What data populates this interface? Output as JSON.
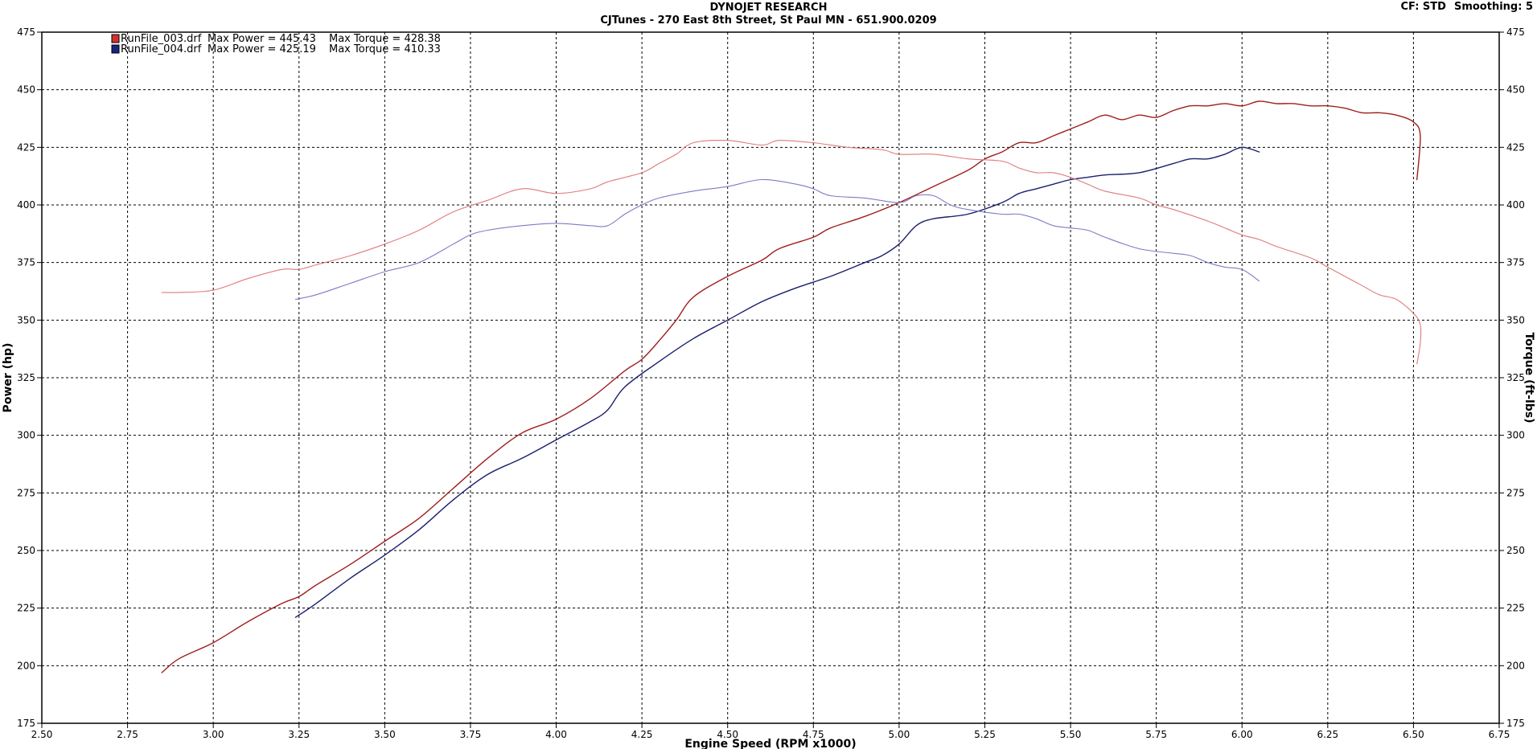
{
  "header": {
    "title": "DYNOJET RESEARCH",
    "subtitle": "CJTunes - 270 East 8th Street, St Paul MN - 651.900.0209",
    "cf_label": "CF: STD",
    "smoothing_label": "Smoothing: 5"
  },
  "chart_data": {
    "type": "line",
    "xlabel": "Engine Speed (RPM x1000)",
    "ylabel_left": "Power (hp)",
    "ylabel_right": "Torque (ft-lbs)",
    "xlim": [
      2.5,
      6.75
    ],
    "ylim": [
      175,
      475
    ],
    "x_ticks": [
      "2.50",
      "2.75",
      "3.00",
      "3.25",
      "3.50",
      "3.75",
      "4.00",
      "4.25",
      "4.50",
      "4.75",
      "5.00",
      "5.25",
      "5.50",
      "5.75",
      "6.00",
      "6.25",
      "6.50",
      "6.75"
    ],
    "y_ticks": [
      "475",
      "450",
      "425",
      "400",
      "375",
      "350",
      "325",
      "300",
      "275",
      "250",
      "225",
      "200",
      "175"
    ],
    "grid": true,
    "legend_position": "top-left",
    "legend": [
      {
        "swatch_color": "#d32f2f",
        "file": "RunFile_003.drf",
        "max_power_label": "Max Power = 445.43",
        "max_torque_label": "Max Torque = 428.38"
      },
      {
        "swatch_color": "#1a237e",
        "file": "RunFile_004.drf",
        "max_power_label": "Max Power = 425.19",
        "max_torque_label": "Max Torque = 410.33"
      }
    ],
    "series": [
      {
        "run": "RunFile_003.drf",
        "quantity": "power",
        "color": "#a01e1e",
        "width": 1.4,
        "points": [
          [
            2.85,
            197
          ],
          [
            2.9,
            203
          ],
          [
            3.0,
            210
          ],
          [
            3.1,
            219
          ],
          [
            3.2,
            227
          ],
          [
            3.25,
            230
          ],
          [
            3.3,
            235
          ],
          [
            3.4,
            244
          ],
          [
            3.5,
            254
          ],
          [
            3.6,
            264
          ],
          [
            3.7,
            277
          ],
          [
            3.8,
            290
          ],
          [
            3.9,
            301
          ],
          [
            4.0,
            307
          ],
          [
            4.1,
            316
          ],
          [
            4.2,
            328
          ],
          [
            4.25,
            333
          ],
          [
            4.3,
            341
          ],
          [
            4.35,
            350
          ],
          [
            4.4,
            360
          ],
          [
            4.5,
            369
          ],
          [
            4.6,
            376
          ],
          [
            4.65,
            381
          ],
          [
            4.75,
            386
          ],
          [
            4.8,
            390
          ],
          [
            4.9,
            395
          ],
          [
            5.0,
            401
          ],
          [
            5.1,
            408
          ],
          [
            5.2,
            415
          ],
          [
            5.25,
            420
          ],
          [
            5.3,
            423
          ],
          [
            5.35,
            427
          ],
          [
            5.4,
            427
          ],
          [
            5.45,
            430
          ],
          [
            5.5,
            433
          ],
          [
            5.55,
            436
          ],
          [
            5.6,
            439
          ],
          [
            5.65,
            437
          ],
          [
            5.7,
            439
          ],
          [
            5.75,
            438
          ],
          [
            5.8,
            441
          ],
          [
            5.85,
            443
          ],
          [
            5.9,
            443
          ],
          [
            5.95,
            444
          ],
          [
            6.0,
            443
          ],
          [
            6.05,
            445
          ],
          [
            6.1,
            444
          ],
          [
            6.15,
            444
          ],
          [
            6.2,
            443
          ],
          [
            6.25,
            443
          ],
          [
            6.3,
            442
          ],
          [
            6.35,
            440
          ],
          [
            6.4,
            440
          ],
          [
            6.45,
            439
          ],
          [
            6.5,
            436
          ],
          [
            6.52,
            430
          ],
          [
            6.51,
            411
          ]
        ]
      },
      {
        "run": "RunFile_004.drf",
        "quantity": "power",
        "color": "#1a1f6e",
        "width": 1.4,
        "points": [
          [
            3.24,
            221
          ],
          [
            3.3,
            227
          ],
          [
            3.4,
            238
          ],
          [
            3.5,
            248
          ],
          [
            3.6,
            259
          ],
          [
            3.7,
            272
          ],
          [
            3.8,
            283
          ],
          [
            3.9,
            290
          ],
          [
            4.0,
            298
          ],
          [
            4.1,
            306
          ],
          [
            4.15,
            311
          ],
          [
            4.2,
            321
          ],
          [
            4.3,
            332
          ],
          [
            4.4,
            342
          ],
          [
            4.5,
            350
          ],
          [
            4.6,
            358
          ],
          [
            4.7,
            364
          ],
          [
            4.8,
            369
          ],
          [
            4.9,
            375
          ],
          [
            4.95,
            378
          ],
          [
            5.0,
            383
          ],
          [
            5.05,
            391
          ],
          [
            5.1,
            394
          ],
          [
            5.2,
            396
          ],
          [
            5.3,
            401
          ],
          [
            5.35,
            405
          ],
          [
            5.4,
            407
          ],
          [
            5.45,
            409
          ],
          [
            5.5,
            411
          ],
          [
            5.55,
            412
          ],
          [
            5.6,
            413
          ],
          [
            5.7,
            414
          ],
          [
            5.8,
            418
          ],
          [
            5.85,
            420
          ],
          [
            5.9,
            420
          ],
          [
            5.95,
            422
          ],
          [
            6.0,
            425
          ],
          [
            6.05,
            423
          ]
        ]
      },
      {
        "run": "RunFile_003.drf",
        "quantity": "torque",
        "color": "#e07a7a",
        "width": 1.1,
        "points": [
          [
            2.85,
            362
          ],
          [
            2.9,
            362
          ],
          [
            3.0,
            363
          ],
          [
            3.1,
            368
          ],
          [
            3.2,
            372
          ],
          [
            3.25,
            372
          ],
          [
            3.3,
            374
          ],
          [
            3.4,
            378
          ],
          [
            3.5,
            383
          ],
          [
            3.6,
            389
          ],
          [
            3.7,
            397
          ],
          [
            3.8,
            402
          ],
          [
            3.9,
            407
          ],
          [
            4.0,
            405
          ],
          [
            4.1,
            407
          ],
          [
            4.15,
            410
          ],
          [
            4.25,
            414
          ],
          [
            4.3,
            418
          ],
          [
            4.35,
            422
          ],
          [
            4.4,
            427
          ],
          [
            4.5,
            428
          ],
          [
            4.6,
            426
          ],
          [
            4.65,
            428
          ],
          [
            4.75,
            427
          ],
          [
            4.85,
            425
          ],
          [
            4.95,
            424
          ],
          [
            5.0,
            422
          ],
          [
            5.1,
            422
          ],
          [
            5.2,
            420
          ],
          [
            5.3,
            419
          ],
          [
            5.35,
            416
          ],
          [
            5.4,
            414
          ],
          [
            5.45,
            414
          ],
          [
            5.5,
            412
          ],
          [
            5.55,
            409
          ],
          [
            5.6,
            406
          ],
          [
            5.7,
            403
          ],
          [
            5.75,
            400
          ],
          [
            5.8,
            398
          ],
          [
            5.9,
            393
          ],
          [
            5.95,
            390
          ],
          [
            6.0,
            387
          ],
          [
            6.05,
            385
          ],
          [
            6.1,
            382
          ],
          [
            6.2,
            377
          ],
          [
            6.25,
            373
          ],
          [
            6.3,
            369
          ],
          [
            6.35,
            365
          ],
          [
            6.4,
            361
          ],
          [
            6.45,
            359
          ],
          [
            6.5,
            353
          ],
          [
            6.52,
            348
          ],
          [
            6.52,
            340
          ],
          [
            6.51,
            331
          ]
        ]
      },
      {
        "run": "RunFile_004.drf",
        "quantity": "torque",
        "color": "#7a7cc4",
        "width": 1.1,
        "points": [
          [
            3.24,
            359
          ],
          [
            3.3,
            361
          ],
          [
            3.4,
            366
          ],
          [
            3.5,
            371
          ],
          [
            3.6,
            375
          ],
          [
            3.7,
            383
          ],
          [
            3.75,
            387
          ],
          [
            3.8,
            389
          ],
          [
            3.9,
            391
          ],
          [
            4.0,
            392
          ],
          [
            4.1,
            391
          ],
          [
            4.15,
            391
          ],
          [
            4.2,
            396
          ],
          [
            4.25,
            400
          ],
          [
            4.3,
            403
          ],
          [
            4.4,
            406
          ],
          [
            4.5,
            408
          ],
          [
            4.6,
            411
          ],
          [
            4.7,
            409
          ],
          [
            4.75,
            407
          ],
          [
            4.8,
            404
          ],
          [
            4.9,
            403
          ],
          [
            5.0,
            401
          ],
          [
            5.05,
            404
          ],
          [
            5.1,
            404
          ],
          [
            5.15,
            400
          ],
          [
            5.2,
            398
          ],
          [
            5.3,
            396
          ],
          [
            5.35,
            396
          ],
          [
            5.4,
            394
          ],
          [
            5.45,
            391
          ],
          [
            5.5,
            390
          ],
          [
            5.55,
            389
          ],
          [
            5.6,
            386
          ],
          [
            5.7,
            381
          ],
          [
            5.8,
            379
          ],
          [
            5.85,
            378
          ],
          [
            5.9,
            375
          ],
          [
            5.95,
            373
          ],
          [
            6.0,
            372
          ],
          [
            6.05,
            367
          ]
        ]
      }
    ]
  }
}
